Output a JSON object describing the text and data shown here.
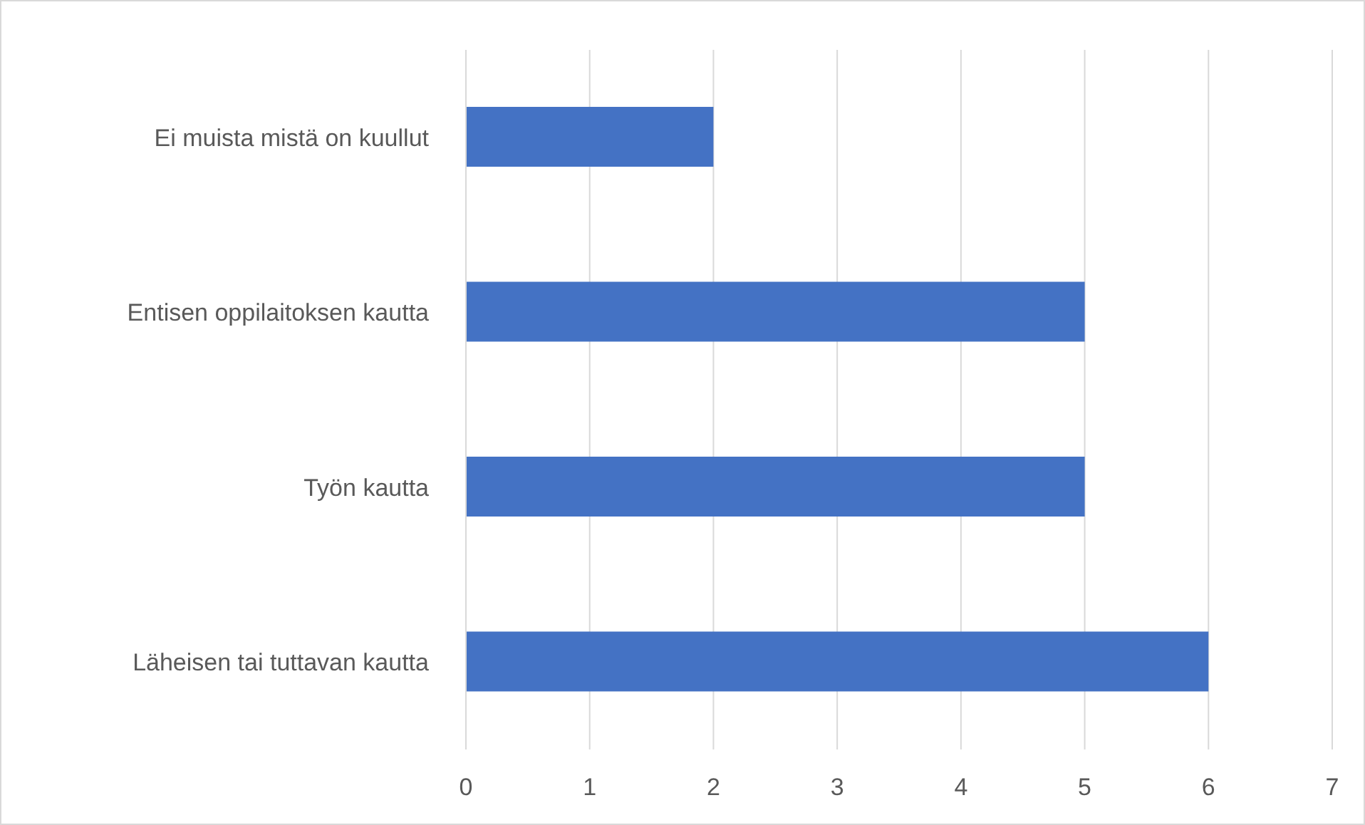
{
  "chart_data": {
    "type": "bar",
    "orientation": "horizontal",
    "categories": [
      "Ei muista mistä on kuullut",
      "Entisen oppilaitoksen kautta",
      "Työn kautta",
      "Läheisen tai tuttavan kautta"
    ],
    "values": [
      2,
      5,
      5,
      6
    ],
    "color": "#4472c4",
    "xlim": [
      0,
      7
    ],
    "xticks": [
      0,
      1,
      2,
      3,
      4,
      5,
      6,
      7
    ],
    "grid": "x"
  }
}
